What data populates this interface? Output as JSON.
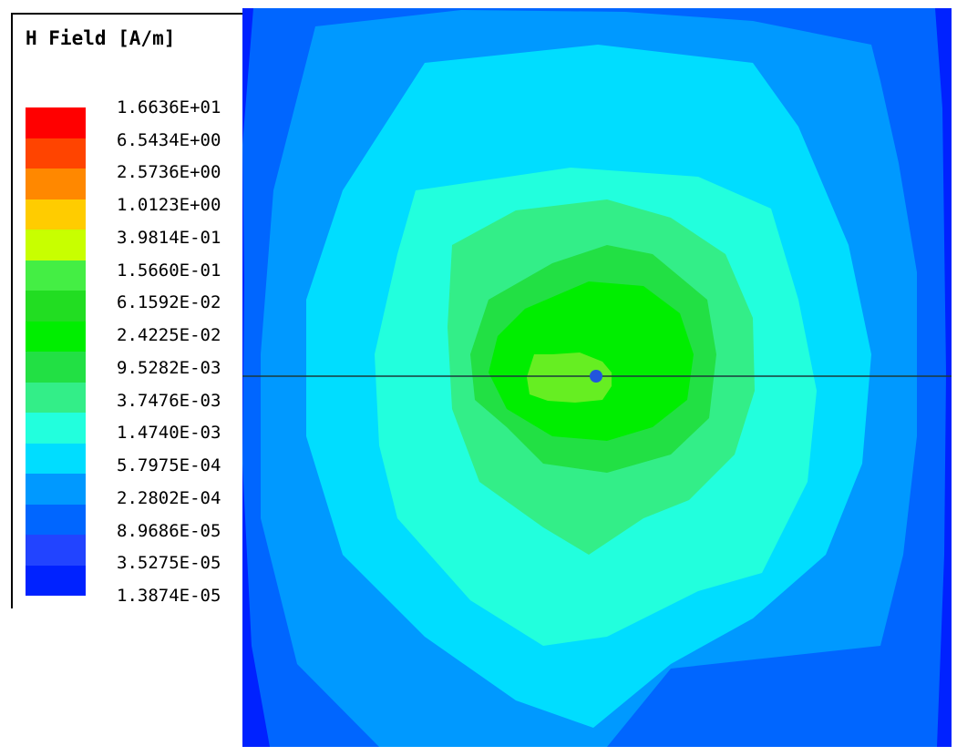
{
  "chart_data": {
    "type": "heatmap",
    "title": "H Field [A/m]",
    "scale": "log",
    "legend_placement": "left",
    "levels": [
      "1.6636E+01",
      "6.5434E+00",
      "2.5736E+00",
      "1.0123E+00",
      "3.9814E-01",
      "1.5660E-01",
      "6.1592E-02",
      "2.4225E-02",
      "9.5282E-03",
      "3.7476E-03",
      "1.4740E-03",
      "5.7975E-04",
      "2.2802E-04",
      "8.9686E-05",
      "3.5275E-05",
      "1.3874E-05"
    ],
    "colors": [
      "#ff0000",
      "#ff4400",
      "#ff8800",
      "#ffcc00",
      "#c8ff00",
      "#44ee44",
      "#22dd22",
      "#00ee00",
      "#22e044",
      "#33ee88",
      "#22ffdd",
      "#00ddff",
      "#0099ff",
      "#0066ff",
      "#2244ff",
      "#0022ff"
    ]
  }
}
